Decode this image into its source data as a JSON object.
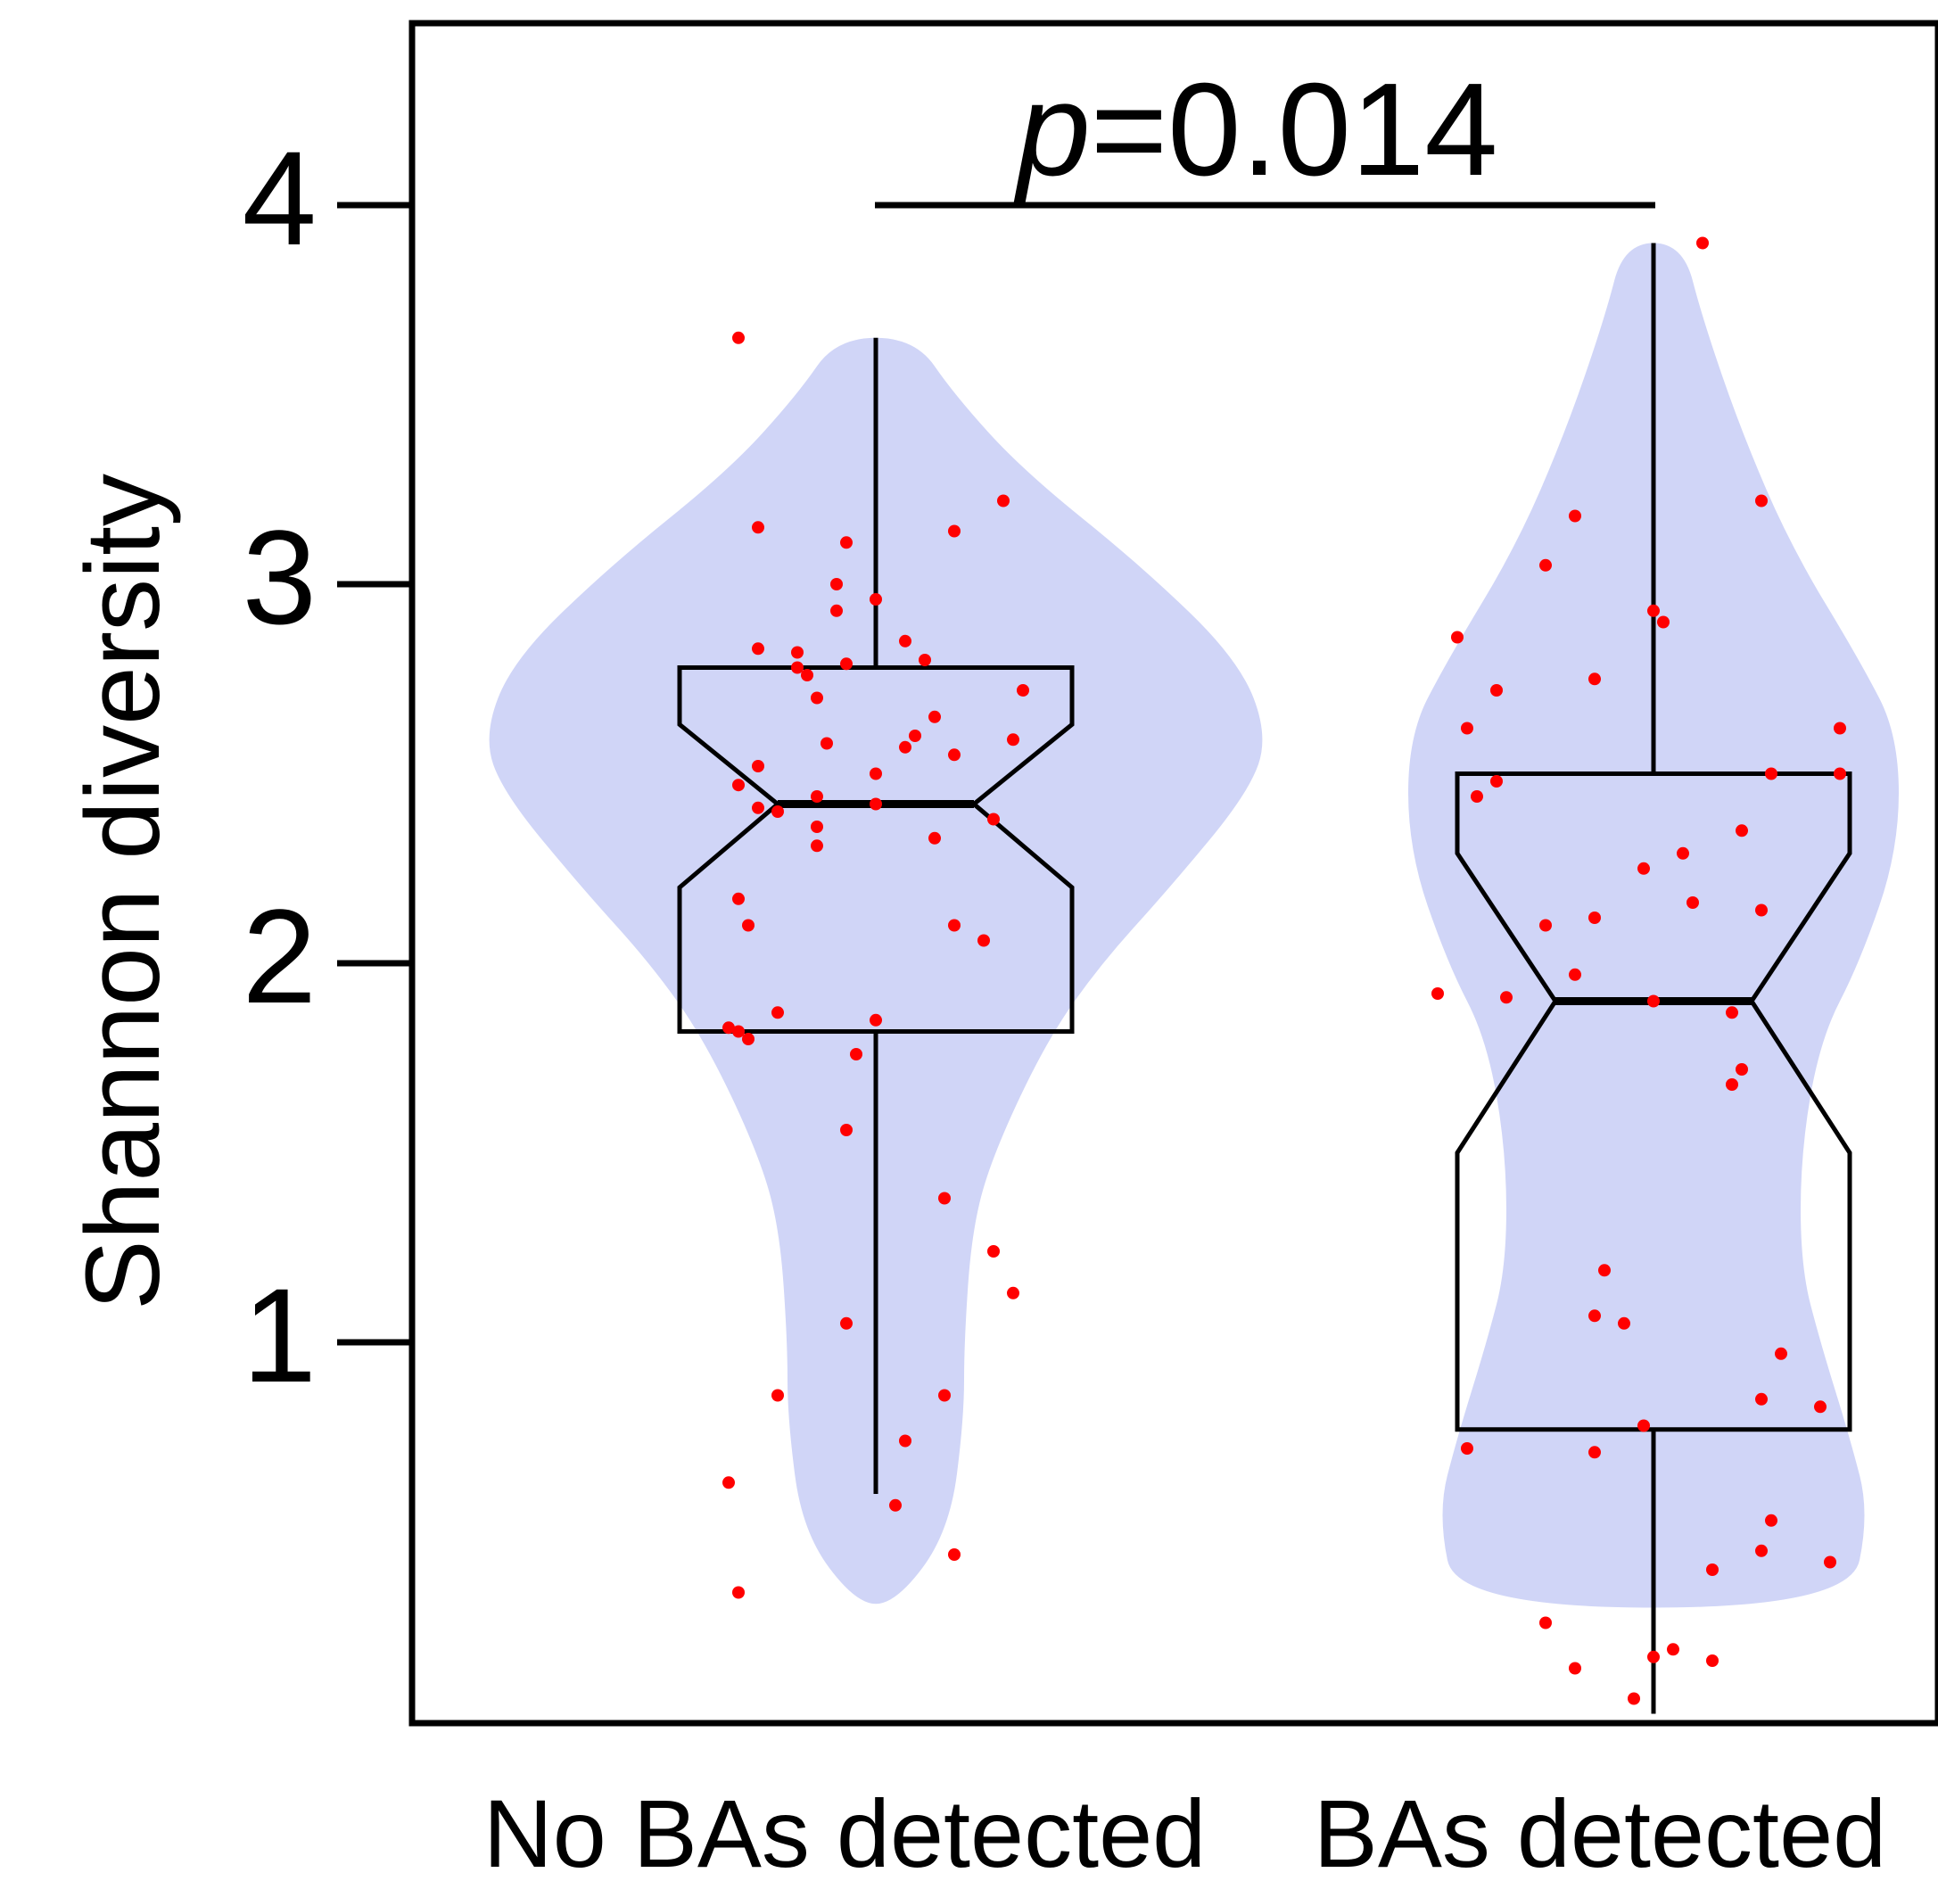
{
  "chart_data": {
    "type": "violin",
    "title": "",
    "xlabel": "",
    "ylabel": "Shannon diversity",
    "ylim": [
      0.02,
      4.5
    ],
    "yticks": [
      1,
      2,
      3,
      4
    ],
    "ytick_labels": [
      "1",
      "2",
      "3",
      "4"
    ],
    "categories": [
      "No BAs detected",
      "BAs detected"
    ],
    "grid": false,
    "legend": "none",
    "annotation": {
      "prefix": "p",
      "text": "=0.014"
    },
    "colors": {
      "violin_fill": "#d0d5f7",
      "point": "#ff0000",
      "line": "#000000"
    },
    "groups": [
      {
        "category": "No BAs detected",
        "box": {
          "whisker_low": 0.6,
          "q1": 1.82,
          "median": 2.42,
          "q3": 2.78,
          "whisker_high": 3.65,
          "notch_low": 2.2,
          "notch_high": 2.63
        },
        "violin": {
          "y": [
            0.31,
            0.5,
            0.8,
            1.0,
            1.3,
            1.5,
            1.8,
            2.0,
            2.2,
            2.45,
            2.6,
            2.8,
            3.05,
            3.3,
            3.5,
            3.65
          ],
          "halfwidth": [
            0.02,
            0.075,
            0.09,
            0.09,
            0.098,
            0.12,
            0.175,
            0.23,
            0.3,
            0.38,
            0.4,
            0.37,
            0.27,
            0.15,
            0.08,
            0.04
          ]
        },
        "points": [
          [
            -0.14,
            3.65
          ],
          [
            0.13,
            3.22
          ],
          [
            -0.12,
            3.15
          ],
          [
            0.08,
            3.14
          ],
          [
            -0.03,
            3.11
          ],
          [
            -0.04,
            3.0
          ],
          [
            0.0,
            2.96
          ],
          [
            -0.04,
            2.93
          ],
          [
            -0.12,
            2.83
          ],
          [
            -0.08,
            2.82
          ],
          [
            0.03,
            2.85
          ],
          [
            -0.08,
            2.78
          ],
          [
            -0.07,
            2.76
          ],
          [
            -0.03,
            2.79
          ],
          [
            0.05,
            2.8
          ],
          [
            0.15,
            2.72
          ],
          [
            -0.06,
            2.7
          ],
          [
            0.06,
            2.65
          ],
          [
            0.04,
            2.6
          ],
          [
            0.14,
            2.59
          ],
          [
            -0.05,
            2.58
          ],
          [
            0.03,
            2.57
          ],
          [
            0.08,
            2.55
          ],
          [
            -0.12,
            2.52
          ],
          [
            0.0,
            2.5
          ],
          [
            -0.14,
            2.47
          ],
          [
            -0.06,
            2.44
          ],
          [
            -0.12,
            2.41
          ],
          [
            -0.1,
            2.4
          ],
          [
            0.0,
            2.42
          ],
          [
            0.12,
            2.38
          ],
          [
            -0.06,
            2.36
          ],
          [
            0.06,
            2.33
          ],
          [
            -0.06,
            2.31
          ],
          [
            -0.14,
            2.17
          ],
          [
            -0.13,
            2.1
          ],
          [
            0.08,
            2.1
          ],
          [
            0.11,
            2.06
          ],
          [
            -0.1,
            1.87
          ],
          [
            0.0,
            1.85
          ],
          [
            -0.15,
            1.83
          ],
          [
            -0.14,
            1.82
          ],
          [
            -0.13,
            1.8
          ],
          [
            -0.02,
            1.76
          ],
          [
            -0.03,
            1.56
          ],
          [
            0.07,
            1.38
          ],
          [
            0.12,
            1.24
          ],
          [
            0.14,
            1.13
          ],
          [
            -0.03,
            1.05
          ],
          [
            -0.1,
            0.86
          ],
          [
            0.07,
            0.86
          ],
          [
            0.03,
            0.74
          ],
          [
            -0.15,
            0.63
          ],
          [
            0.02,
            0.57
          ],
          [
            0.08,
            0.44
          ],
          [
            -0.14,
            0.34
          ]
        ]
      },
      {
        "category": "BAs detected",
        "box": {
          "whisker_low": 0.02,
          "q1": 0.77,
          "median": 1.9,
          "q3": 2.5,
          "whisker_high": 3.9,
          "notch_low": 1.5,
          "notch_high": 2.29
        },
        "violin": {
          "y": [
            0.3,
            0.55,
            0.75,
            1.0,
            1.2,
            1.5,
            1.8,
            2.0,
            2.3,
            2.6,
            2.8,
            3.1,
            3.4,
            3.7,
            3.9
          ],
          "halfwidth": [
            0.2,
            0.22,
            0.2,
            0.17,
            0.15,
            0.15,
            0.17,
            0.21,
            0.25,
            0.25,
            0.21,
            0.14,
            0.09,
            0.05,
            0.03
          ]
        },
        "points": [
          [
            0.05,
            3.9
          ],
          [
            0.11,
            3.22
          ],
          [
            -0.08,
            3.18
          ],
          [
            -0.11,
            3.05
          ],
          [
            0.0,
            2.93
          ],
          [
            0.01,
            2.9
          ],
          [
            -0.2,
            2.86
          ],
          [
            -0.16,
            2.72
          ],
          [
            -0.06,
            2.75
          ],
          [
            -0.19,
            2.62
          ],
          [
            0.19,
            2.62
          ],
          [
            -0.16,
            2.48
          ],
          [
            -0.18,
            2.44
          ],
          [
            0.12,
            2.5
          ],
          [
            0.19,
            2.5
          ],
          [
            0.09,
            2.35
          ],
          [
            0.03,
            2.29
          ],
          [
            -0.01,
            2.25
          ],
          [
            0.04,
            2.16
          ],
          [
            0.11,
            2.14
          ],
          [
            -0.06,
            2.12
          ],
          [
            -0.11,
            2.1
          ],
          [
            -0.08,
            1.97
          ],
          [
            -0.22,
            1.92
          ],
          [
            -0.15,
            1.91
          ],
          [
            0.0,
            1.9
          ],
          [
            0.08,
            1.87
          ],
          [
            0.09,
            1.72
          ],
          [
            0.08,
            1.68
          ],
          [
            -0.05,
            1.19
          ],
          [
            -0.06,
            1.07
          ],
          [
            -0.03,
            1.05
          ],
          [
            0.13,
            0.97
          ],
          [
            0.11,
            0.85
          ],
          [
            0.17,
            0.83
          ],
          [
            -0.01,
            0.78
          ],
          [
            -0.06,
            0.71
          ],
          [
            -0.19,
            0.72
          ],
          [
            0.12,
            0.53
          ],
          [
            0.11,
            0.45
          ],
          [
            0.18,
            0.42
          ],
          [
            0.06,
            0.4
          ],
          [
            -0.11,
            0.26
          ],
          [
            0.02,
            0.19
          ],
          [
            0.06,
            0.16
          ],
          [
            -0.08,
            0.14
          ],
          [
            0.0,
            0.17
          ],
          [
            -0.02,
            0.06
          ]
        ]
      }
    ]
  }
}
